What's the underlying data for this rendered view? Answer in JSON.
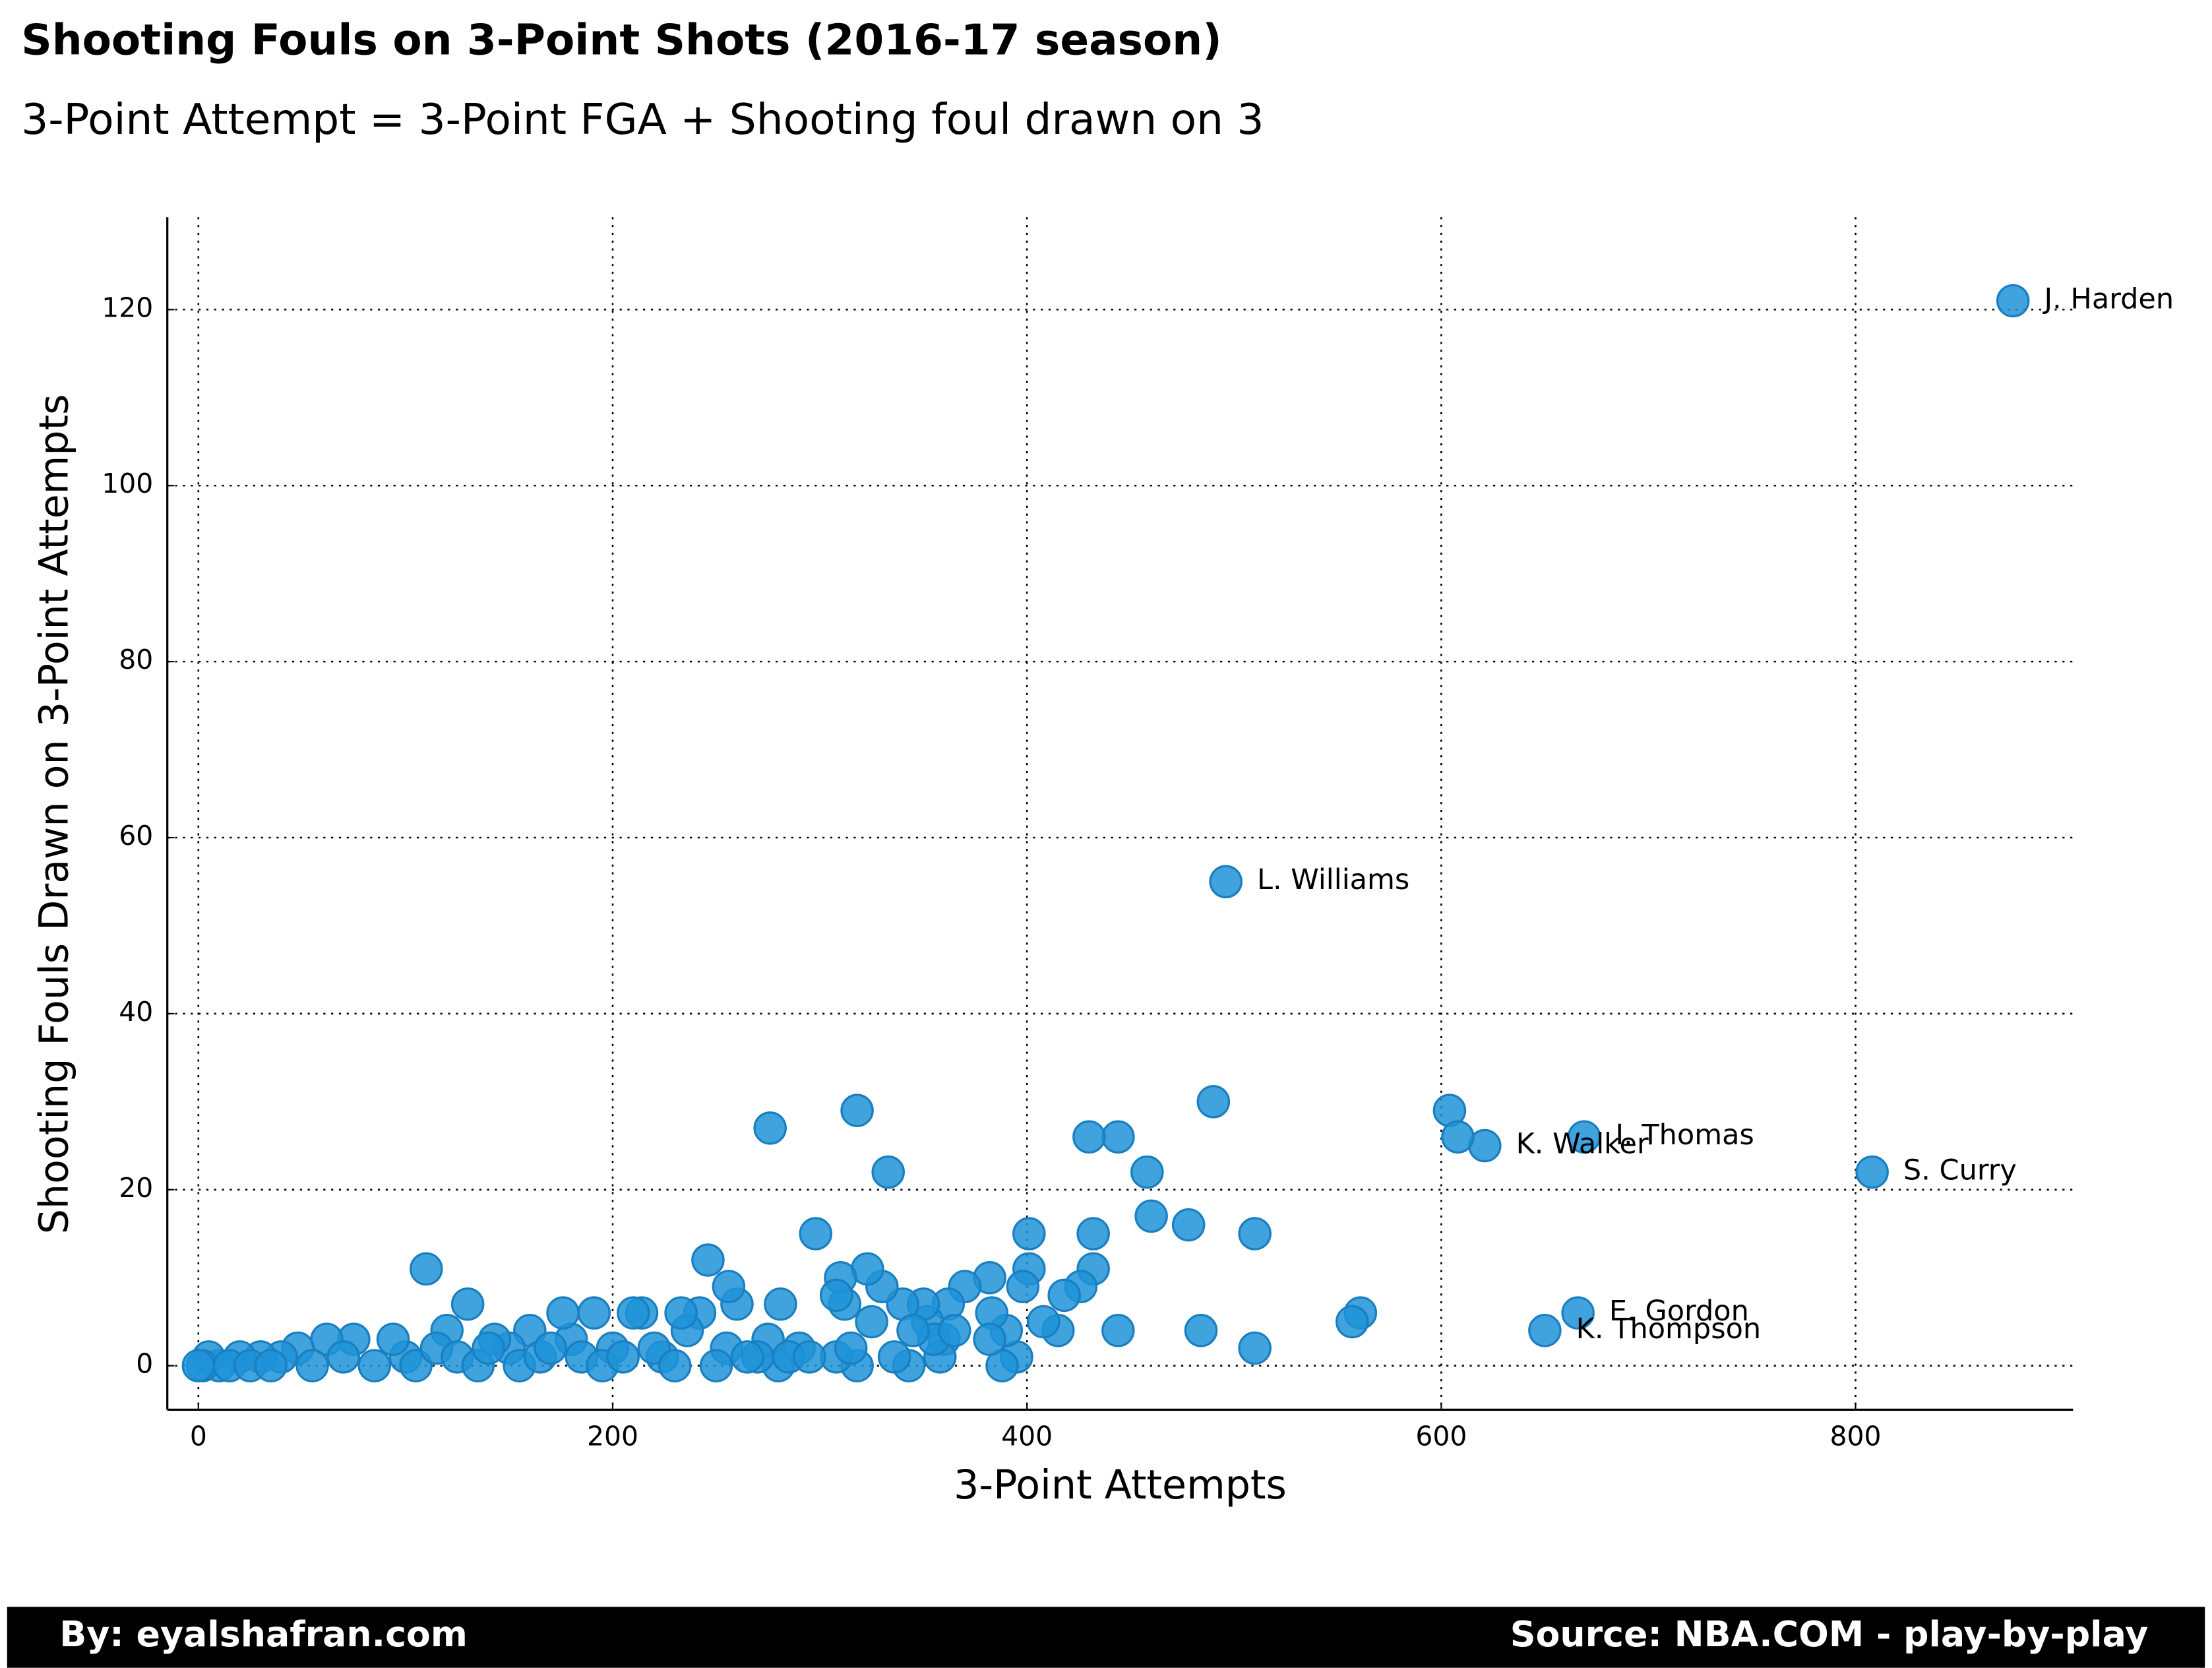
{
  "chart_data": {
    "type": "scatter",
    "title": "Shooting Fouls on 3-Point Shots (2016-17 season)",
    "subtitle": "3-Point Attempt = 3-Point FGA + Shooting foul drawn on 3",
    "x_label": "3-Point Attempts",
    "y_label": "Shooting Fouls Drawn on 3-Point Attempts",
    "footer_left": "By: eyalshafran.com",
    "footer_right": "Source: NBA.COM - play-by-play",
    "color": "#1f93d8",
    "grid": true,
    "xlim": [
      -15,
      905
    ],
    "xticks": [
      0,
      200,
      400,
      600,
      800
    ],
    "ylim": [
      -5,
      130.5
    ],
    "yticks": [
      0,
      20,
      40,
      60,
      80,
      100,
      120
    ],
    "x": [
      876,
      496,
      669,
      621,
      808,
      666,
      650,
      604,
      608,
      561,
      557,
      510,
      510,
      490,
      484,
      478,
      460,
      458,
      444,
      444,
      430,
      432,
      432,
      426,
      418,
      415,
      408,
      401,
      401,
      398,
      395,
      390,
      388,
      383,
      382,
      382,
      370,
      362,
      360,
      358,
      352,
      350,
      343,
      340,
      336,
      333,
      330,
      325,
      323,
      318,
      318,
      312,
      310,
      308,
      308,
      298,
      290,
      281,
      280,
      276,
      275,
      270,
      260,
      256,
      255,
      246,
      242,
      236,
      233,
      224,
      214,
      210,
      200,
      191,
      180,
      176,
      160,
      150,
      143,
      130,
      120,
      110,
      100,
      94,
      75,
      62,
      48,
      40,
      30,
      20,
      10,
      5,
      2,
      0,
      15,
      25,
      35,
      55,
      70,
      85,
      105,
      115,
      125,
      135,
      140,
      155,
      165,
      170,
      185,
      195,
      205,
      220,
      230,
      250,
      265,
      285,
      295,
      315,
      355,
      365,
      345
    ],
    "values": [
      121,
      55,
      26,
      25,
      22,
      6,
      4,
      29,
      26,
      6,
      5,
      15,
      2,
      30,
      4,
      16,
      17,
      22,
      26,
      4,
      26,
      15,
      11,
      9,
      8,
      4,
      5,
      15,
      11,
      9,
      1,
      4,
      0,
      6,
      10,
      3,
      9,
      7,
      3,
      1,
      5,
      7,
      0,
      7,
      1,
      22,
      9,
      5,
      11,
      29,
      0,
      7,
      10,
      8,
      1,
      15,
      2,
      7,
      0,
      27,
      3,
      1,
      7,
      9,
      2,
      12,
      6,
      4,
      6,
      1,
      6,
      6,
      2,
      6,
      3,
      6,
      4,
      2,
      3,
      7,
      4,
      11,
      1,
      3,
      3,
      3,
      2,
      1,
      1,
      1,
      0,
      1,
      0,
      0,
      0,
      0,
      0,
      0,
      1,
      0,
      0,
      2,
      1,
      0,
      2,
      0,
      1,
      2,
      1,
      0,
      1,
      2,
      0,
      0,
      1,
      1,
      1,
      2,
      3,
      4,
      4
    ],
    "point_labels": [
      "J. Harden",
      "L. Williams",
      "I. Thomas",
      "K. Walker",
      "S. Curry",
      "E. Gordon",
      "K. Thompson",
      null,
      null,
      null,
      null,
      null,
      null,
      null,
      null,
      null,
      null,
      null,
      null,
      null,
      null,
      null,
      null,
      null,
      null,
      null,
      null,
      null,
      null,
      null,
      null,
      null,
      null,
      null,
      null,
      null,
      null,
      null,
      null,
      null,
      null,
      null,
      null,
      null,
      null,
      null,
      null,
      null,
      null,
      null,
      null,
      null,
      null,
      null,
      null,
      null,
      null,
      null,
      null,
      null,
      null,
      null,
      null,
      null,
      null,
      null,
      null,
      null,
      null,
      null,
      null,
      null,
      null,
      null,
      null,
      null,
      null,
      null,
      null,
      null,
      null,
      null,
      null,
      null,
      null,
      null,
      null,
      null,
      null,
      null,
      null,
      null,
      null,
      null,
      null,
      null,
      null,
      null,
      null,
      null,
      null,
      null,
      null,
      null,
      null,
      null,
      null,
      null,
      null,
      null,
      null,
      null,
      null,
      null,
      null,
      null,
      null,
      null,
      null,
      null,
      null
    ]
  }
}
